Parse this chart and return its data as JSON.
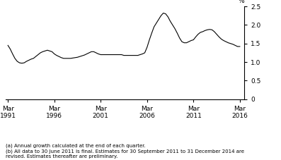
{
  "title": "",
  "ylabel": "%",
  "ylim": [
    0,
    2.5
  ],
  "yticks": [
    0,
    0.5,
    1.0,
    1.5,
    2.0,
    2.5
  ],
  "xlim_start": 1991.0,
  "xlim_end": 2016.75,
  "xtick_years": [
    1991,
    1996,
    2001,
    2006,
    2011,
    2016
  ],
  "line_color": "#000000",
  "line_width": 0.8,
  "footnote1": "(a) Annual growth calculated at the end of each quarter.",
  "footnote2": "(b) All data to 30 June 2011 is final. Estimates for 30 September 2011 to 31 December 2014 are\nrevised. Estimates thereafter are preliminary.",
  "data": {
    "years": [
      1991.25,
      1991.5,
      1991.75,
      1992.0,
      1992.25,
      1992.5,
      1992.75,
      1993.0,
      1993.25,
      1993.5,
      1993.75,
      1994.0,
      1994.25,
      1994.5,
      1994.75,
      1995.0,
      1995.25,
      1995.5,
      1995.75,
      1996.0,
      1996.25,
      1996.5,
      1996.75,
      1997.0,
      1997.25,
      1997.5,
      1997.75,
      1998.0,
      1998.25,
      1998.5,
      1998.75,
      1999.0,
      1999.25,
      1999.5,
      1999.75,
      2000.0,
      2000.25,
      2000.5,
      2000.75,
      2001.0,
      2001.25,
      2001.5,
      2001.75,
      2002.0,
      2002.25,
      2002.5,
      2002.75,
      2003.0,
      2003.25,
      2003.5,
      2003.75,
      2004.0,
      2004.25,
      2004.5,
      2004.75,
      2005.0,
      2005.25,
      2005.5,
      2005.75,
      2006.0,
      2006.25,
      2006.5,
      2006.75,
      2007.0,
      2007.25,
      2007.5,
      2007.75,
      2008.0,
      2008.25,
      2008.5,
      2008.75,
      2009.0,
      2009.25,
      2009.5,
      2009.75,
      2010.0,
      2010.25,
      2010.5,
      2010.75,
      2011.0,
      2011.25,
      2011.5,
      2011.75,
      2012.0,
      2012.25,
      2012.5,
      2012.75,
      2013.0,
      2013.25,
      2013.5,
      2013.75,
      2014.0,
      2014.25,
      2014.5,
      2014.75,
      2015.0,
      2015.25,
      2015.5,
      2015.75,
      2016.0,
      2016.25
    ],
    "values": [
      1.45,
      1.35,
      1.22,
      1.1,
      1.02,
      0.98,
      0.97,
      0.98,
      1.02,
      1.05,
      1.08,
      1.1,
      1.15,
      1.2,
      1.25,
      1.28,
      1.3,
      1.32,
      1.3,
      1.28,
      1.22,
      1.18,
      1.15,
      1.12,
      1.1,
      1.1,
      1.1,
      1.1,
      1.11,
      1.12,
      1.13,
      1.15,
      1.17,
      1.19,
      1.22,
      1.25,
      1.28,
      1.28,
      1.25,
      1.22,
      1.2,
      1.2,
      1.2,
      1.2,
      1.2,
      1.2,
      1.2,
      1.2,
      1.2,
      1.2,
      1.18,
      1.18,
      1.18,
      1.18,
      1.18,
      1.18,
      1.18,
      1.2,
      1.22,
      1.25,
      1.4,
      1.6,
      1.78,
      1.95,
      2.05,
      2.15,
      2.25,
      2.32,
      2.3,
      2.22,
      2.1,
      2.0,
      1.9,
      1.78,
      1.65,
      1.55,
      1.52,
      1.52,
      1.55,
      1.58,
      1.6,
      1.68,
      1.75,
      1.8,
      1.82,
      1.85,
      1.87,
      1.88,
      1.87,
      1.82,
      1.75,
      1.68,
      1.62,
      1.58,
      1.55,
      1.52,
      1.5,
      1.48,
      1.45,
      1.42,
      1.42
    ]
  }
}
